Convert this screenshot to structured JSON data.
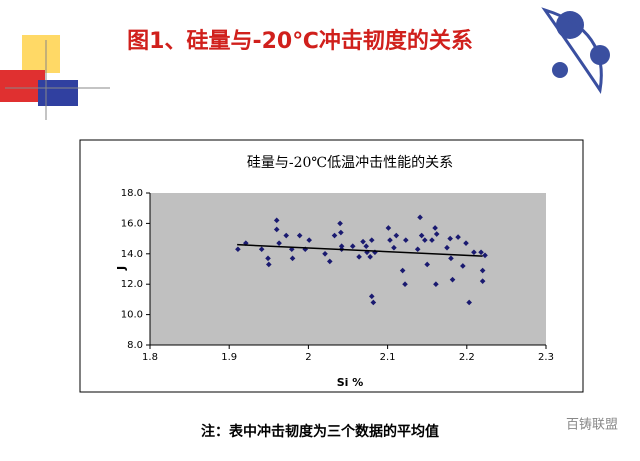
{
  "slide": {
    "title": "图1、硅量与-20℃冲击韧度的关系",
    "note": "注：表中冲击韧度为三个数据的平均值",
    "watermark": "百铸联盟"
  },
  "chart_data": {
    "type": "scatter",
    "title": "硅量与-20℃低温冲击性能的关系",
    "x_label": "Si %",
    "y_label": "J",
    "xlim": [
      1.8,
      2.3
    ],
    "xticks": [
      {
        "value": 1.8,
        "label": "1.8"
      },
      {
        "value": 1.9,
        "label": "1.9"
      },
      2,
      {
        "value": 2.1,
        "label": "2.1"
      },
      {
        "value": 2.2,
        "label": "2.2"
      },
      {
        "value": 2.3,
        "label": "2.3"
      }
    ],
    "ylim": [
      8,
      18
    ],
    "yticks": [
      {
        "value": 8,
        "label": "8.0"
      },
      {
        "value": 10,
        "label": "10.0"
      },
      {
        "value": 12,
        "label": "12.0"
      },
      {
        "value": 14,
        "label": "14.0"
      },
      {
        "value": 16,
        "label": "16.0"
      },
      {
        "value": 18,
        "label": "18.0"
      }
    ],
    "grid": false,
    "plot_background": "#c0c0c0",
    "series": [
      {
        "color": "#1a1a70",
        "x": [
          1.911,
          1.921,
          1.941,
          1.949,
          1.95,
          1.96,
          1.96,
          1.963,
          1.972,
          1.979,
          1.98,
          1.989,
          1.996,
          2.001,
          2.021,
          2.027,
          2.033,
          2.04,
          2.041,
          2.042,
          2.042,
          2.056,
          2.064,
          2.069,
          2.073,
          2.074,
          2.078,
          2.08,
          2.08,
          2.082,
          2.084,
          2.101,
          2.103,
          2.108,
          2.111,
          2.119,
          2.122,
          2.123,
          2.138,
          2.141,
          2.143,
          2.147,
          2.15,
          2.156,
          2.16,
          2.162,
          2.161,
          2.175,
          2.179,
          2.18,
          2.182,
          2.189,
          2.195,
          2.199,
          2.203,
          2.209,
          2.218,
          2.22,
          2.22,
          2.223
        ],
        "values": [
          14.3,
          14.7,
          14.3,
          13.7,
          13.3,
          16.2,
          15.6,
          14.7,
          15.2,
          14.3,
          13.7,
          15.2,
          14.3,
          14.9,
          14.0,
          13.5,
          15.2,
          16.0,
          15.4,
          14.5,
          14.3,
          14.5,
          13.8,
          14.8,
          14.5,
          14.1,
          13.8,
          14.9,
          11.2,
          10.8,
          14.1,
          15.7,
          14.9,
          14.4,
          15.2,
          12.9,
          12.0,
          14.9,
          14.3,
          16.4,
          15.2,
          14.9,
          13.3,
          14.9,
          15.7,
          15.3,
          12.0,
          14.4,
          15.0,
          13.7,
          12.3,
          15.1,
          13.2,
          14.7,
          10.8,
          14.1,
          14.1,
          12.9,
          12.2,
          13.9
        ]
      }
    ],
    "trendline": {
      "color": "#000000",
      "x": [
        1.91,
        2.22
      ],
      "values": [
        14.6,
        13.85
      ]
    }
  }
}
